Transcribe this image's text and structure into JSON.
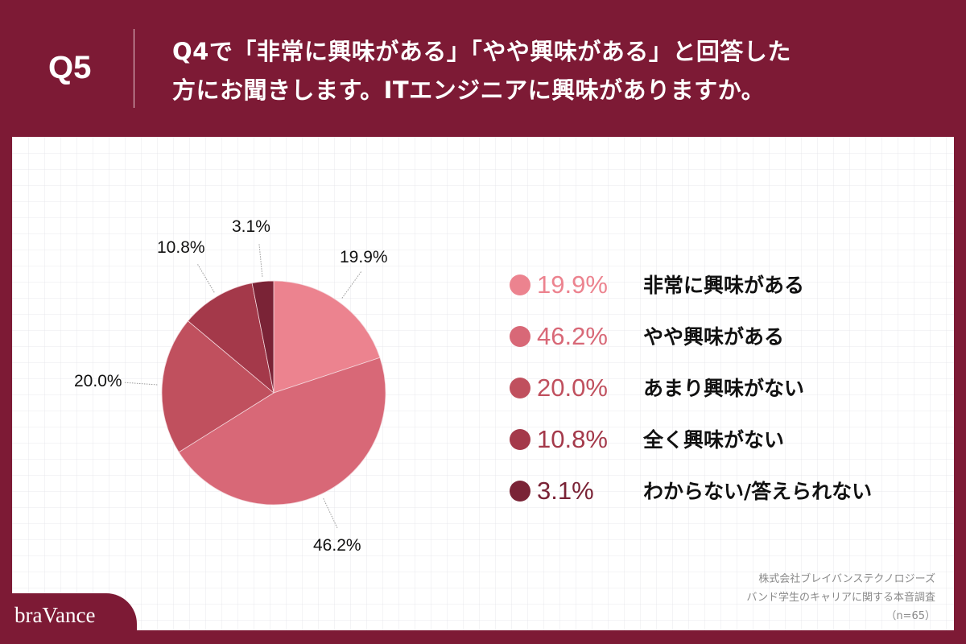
{
  "header": {
    "question_number": "Q5",
    "question_line1": "Q4で「非常に興味がある」「やや興味がある」と回答した",
    "question_line2": "方にお聞きします。ITエンジニアに興味がありますか。"
  },
  "chart_data": {
    "type": "pie",
    "title": "Q4で「非常に興味がある」「やや興味がある」と回答した方にお聞きします。ITエンジニアに興味がありますか。",
    "categories": [
      "非常に興味がある",
      "やや興味がある",
      "あまり興味がない",
      "全く興味がない",
      "わからない/答えられない"
    ],
    "values": [
      19.9,
      46.2,
      20.0,
      10.8,
      3.1
    ],
    "value_labels": [
      "19.9%",
      "46.2%",
      "20.0%",
      "10.8%",
      "3.1%"
    ],
    "colors": [
      "#ec838f",
      "#d86877",
      "#c0505e",
      "#a4394a",
      "#7a2336"
    ],
    "start_angle": "12 o'clock, clockwise",
    "legend_position": "right",
    "n": 65
  },
  "legend": {
    "items": [
      {
        "pct": "19.9%",
        "label": "非常に興味がある",
        "color": "#ec838f"
      },
      {
        "pct": "46.2%",
        "label": "やや興味がある",
        "color": "#d86877"
      },
      {
        "pct": "20.0%",
        "label": "あまり興味がない",
        "color": "#c0505e"
      },
      {
        "pct": "10.8%",
        "label": "全く興味がない",
        "color": "#a4394a"
      },
      {
        "pct": "3.1%",
        "label": "わからない/答えられない",
        "color": "#7a2336"
      }
    ]
  },
  "source": {
    "line1": "株式会社ブレイバンステクノロジーズ",
    "line2": "バンド学生のキャリアに関する本音調査",
    "line3": "（n=65）"
  },
  "brand": {
    "logo_text": "braVance",
    "primary_color": "#7d1a35"
  }
}
